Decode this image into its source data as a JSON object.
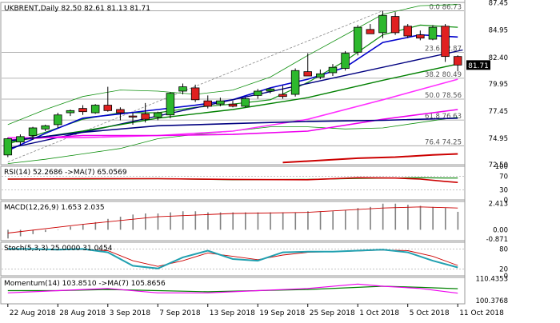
{
  "chart_data": {
    "type": "candlestick",
    "symbol": "UKBRENT",
    "timeframe": "Daily",
    "header": "UKBRENT,Daily  82.50 82.61 81.13 81.71",
    "last_price": "81.71",
    "ylim": [
      72.5,
      87.5
    ],
    "y_ticks": [
      "87.45",
      "84.95",
      "82.40",
      "79.95",
      "77.45",
      "74.95",
      "72.50"
    ],
    "x_labels": [
      "22 Aug 2018",
      "28 Aug 2018",
      "3 Sep 2018",
      "7 Sep 2018",
      "13 Sep 2018",
      "19 Sep 2018",
      "25 Sep 2018",
      "1 Oct 2018",
      "5 Oct 2018",
      "11 Oct 2018"
    ],
    "x_label_index": [
      0,
      4,
      8,
      12,
      16,
      20,
      24,
      28,
      32,
      36
    ],
    "candles": [
      {
        "o": 73.4,
        "h": 75.0,
        "l": 73.2,
        "c": 74.9
      },
      {
        "o": 74.6,
        "h": 75.3,
        "l": 74.3,
        "c": 75.1
      },
      {
        "o": 75.2,
        "h": 76.0,
        "l": 74.8,
        "c": 75.9
      },
      {
        "o": 75.8,
        "h": 76.2,
        "l": 75.6,
        "c": 76.1
      },
      {
        "o": 76.2,
        "h": 77.3,
        "l": 75.9,
        "c": 77.1
      },
      {
        "o": 77.3,
        "h": 77.6,
        "l": 77.0,
        "c": 77.5
      },
      {
        "o": 77.7,
        "h": 78.0,
        "l": 77.1,
        "c": 77.4
      },
      {
        "o": 77.3,
        "h": 78.1,
        "l": 77.2,
        "c": 78.0
      },
      {
        "o": 78.0,
        "h": 79.7,
        "l": 77.4,
        "c": 77.5
      },
      {
        "o": 77.6,
        "h": 77.8,
        "l": 76.6,
        "c": 77.3
      },
      {
        "o": 77.0,
        "h": 77.3,
        "l": 76.2,
        "c": 76.9
      },
      {
        "o": 77.2,
        "h": 78.2,
        "l": 76.4,
        "c": 76.7
      },
      {
        "o": 76.9,
        "h": 77.4,
        "l": 76.6,
        "c": 77.3
      },
      {
        "o": 77.1,
        "h": 79.2,
        "l": 76.8,
        "c": 79.1
      },
      {
        "o": 79.3,
        "h": 80.0,
        "l": 79.0,
        "c": 79.7
      },
      {
        "o": 79.6,
        "h": 79.9,
        "l": 78.3,
        "c": 78.5
      },
      {
        "o": 78.4,
        "h": 78.9,
        "l": 77.7,
        "c": 77.9
      },
      {
        "o": 78.1,
        "h": 78.7,
        "l": 77.9,
        "c": 78.4
      },
      {
        "o": 78.1,
        "h": 78.4,
        "l": 77.8,
        "c": 77.9
      },
      {
        "o": 77.9,
        "h": 78.7,
        "l": 77.8,
        "c": 78.6
      },
      {
        "o": 78.9,
        "h": 79.5,
        "l": 78.6,
        "c": 79.3
      },
      {
        "o": 79.3,
        "h": 79.6,
        "l": 79.1,
        "c": 79.5
      },
      {
        "o": 79.0,
        "h": 79.8,
        "l": 78.6,
        "c": 78.8
      },
      {
        "o": 79.0,
        "h": 81.4,
        "l": 78.8,
        "c": 81.2
      },
      {
        "o": 81.1,
        "h": 82.8,
        "l": 80.8,
        "c": 80.7
      },
      {
        "o": 80.6,
        "h": 81.3,
        "l": 80.4,
        "c": 80.9
      },
      {
        "o": 81.0,
        "h": 81.8,
        "l": 80.7,
        "c": 81.5
      },
      {
        "o": 81.4,
        "h": 83.0,
        "l": 81.2,
        "c": 82.8
      },
      {
        "o": 82.9,
        "h": 85.4,
        "l": 82.6,
        "c": 85.2
      },
      {
        "o": 85.0,
        "h": 85.5,
        "l": 84.7,
        "c": 84.6
      },
      {
        "o": 84.7,
        "h": 86.7,
        "l": 84.2,
        "c": 86.3
      },
      {
        "o": 86.2,
        "h": 86.6,
        "l": 84.5,
        "c": 84.7
      },
      {
        "o": 85.3,
        "h": 85.5,
        "l": 84.2,
        "c": 84.4
      },
      {
        "o": 84.5,
        "h": 84.9,
        "l": 84.0,
        "c": 84.2
      },
      {
        "o": 84.1,
        "h": 85.4,
        "l": 84.0,
        "c": 85.2
      },
      {
        "o": 85.3,
        "h": 85.5,
        "l": 82.0,
        "c": 82.5
      },
      {
        "o": 82.5,
        "h": 82.61,
        "l": 81.13,
        "c": 81.71
      }
    ],
    "fibonacci": [
      {
        "label": "0.0 86.73",
        "value": 86.73
      },
      {
        "label": "23.6 82.87",
        "value": 82.87
      },
      {
        "label": "38.2 80.49",
        "value": 80.49
      },
      {
        "label": "50.0 78.56",
        "value": 78.56
      },
      {
        "label": "61.8 76.63",
        "value": 76.63
      },
      {
        "label": "76.4 74.25",
        "value": 74.25
      }
    ],
    "overlays": [
      {
        "role": "bollinger-upper",
        "color": "#109010",
        "width": 0.8,
        "x": [
          0,
          3,
          6,
          9,
          12,
          15,
          18,
          21,
          24,
          27,
          30,
          33,
          36
        ],
        "y": [
          76.2,
          77.6,
          78.8,
          79.4,
          79.3,
          79.0,
          79.4,
          80.6,
          82.6,
          84.5,
          86.4,
          87.2,
          87.3
        ]
      },
      {
        "role": "bollinger-lower",
        "color": "#109010",
        "width": 0.8,
        "x": [
          0,
          3,
          6,
          9,
          12,
          15,
          18,
          21,
          24,
          27,
          30,
          33,
          36
        ],
        "y": [
          72.6,
          73.0,
          73.5,
          74.0,
          74.9,
          75.3,
          75.6,
          76.0,
          76.0,
          75.8,
          75.9,
          76.4,
          76.9
        ]
      },
      {
        "role": "ma-short",
        "color": "#109010",
        "width": 1.2,
        "x": [
          0,
          3,
          6,
          9,
          12,
          15,
          18,
          21,
          24,
          27,
          30,
          33,
          36
        ],
        "y": [
          74.4,
          75.5,
          76.7,
          77.3,
          77.3,
          77.8,
          78.1,
          78.5,
          80.1,
          82.1,
          84.5,
          85.4,
          85.2
        ]
      },
      {
        "role": "ma-blue",
        "color": "#0000cc",
        "width": 1.6,
        "x": [
          0,
          3,
          6,
          9,
          12,
          15,
          18,
          21,
          24,
          27,
          30,
          33,
          36
        ],
        "y": [
          73.8,
          75.4,
          76.8,
          77.2,
          77.6,
          78.0,
          78.5,
          79.6,
          80.4,
          81.5,
          83.8,
          84.5,
          84.3
        ]
      },
      {
        "role": "trendline",
        "color": "#000080",
        "width": 1.4,
        "x": [
          0,
          36.4
        ],
        "y": [
          74.0,
          83.1
        ]
      },
      {
        "role": "ma-medium",
        "color": "#008000",
        "width": 1.4,
        "x": [
          0,
          6,
          12,
          18,
          24,
          30,
          36
        ],
        "y": [
          74.6,
          75.6,
          76.8,
          77.6,
          78.7,
          80.3,
          81.8
        ]
      },
      {
        "role": "ma-pink",
        "color": "#ff30ff",
        "width": 1.6,
        "x": [
          0,
          6,
          12,
          18,
          24,
          30,
          36
        ],
        "y": [
          75.0,
          75.0,
          75.2,
          75.6,
          76.7,
          78.5,
          80.4
        ]
      },
      {
        "role": "ma-magenta",
        "color": "#ee00ee",
        "width": 1.6,
        "x": [
          0,
          6,
          12,
          18,
          24,
          30,
          36
        ],
        "y": [
          74.8,
          75.2,
          75.2,
          75.3,
          75.6,
          76.7,
          77.6
        ]
      },
      {
        "role": "ma-navy",
        "color": "#000080",
        "width": 1.6,
        "x": [
          0,
          6,
          12,
          18,
          24,
          30,
          36
        ],
        "y": [
          74.7,
          75.5,
          76.1,
          76.3,
          76.5,
          76.6,
          76.8
        ]
      },
      {
        "role": "ma-long",
        "color": "#cc0000",
        "width": 2,
        "x": [
          22,
          25,
          28,
          31,
          34,
          36
        ],
        "y": [
          72.7,
          72.9,
          73.1,
          73.2,
          73.4,
          73.5
        ]
      }
    ],
    "rsi": {
      "title": "RSI(14) 52.2686  ->MA(7) 65.0569",
      "ylim": [
        0,
        100
      ],
      "levels": [
        30,
        70
      ],
      "ticks": [
        "100",
        "70",
        "30",
        "0"
      ],
      "rsi": {
        "color": "#cc0000",
        "x": [
          0,
          6,
          12,
          18,
          24,
          28,
          31,
          33,
          35,
          36
        ],
        "y": [
          62,
          63,
          63,
          61,
          60,
          66,
          65,
          62,
          55,
          52
        ]
      },
      "ma": {
        "color": "#008000",
        "x": [
          0,
          6,
          12,
          18,
          24,
          28,
          31,
          33,
          35,
          36
        ],
        "y": [
          62,
          62,
          63,
          60,
          61,
          64,
          65,
          66,
          65,
          65
        ]
      }
    },
    "macd": {
      "title": "MACD(12,26,9) 1.653 2.035",
      "ticks": [
        "2.413",
        "0.00",
        "-0.871"
      ],
      "ylim": [
        -1.0,
        2.6
      ],
      "histogram": [
        -0.8,
        -0.6,
        -0.4,
        -0.2,
        0.0,
        0.3,
        0.5,
        0.7,
        1.0,
        1.2,
        1.4,
        1.5,
        1.5,
        1.6,
        1.7,
        1.7,
        1.6,
        1.6,
        1.6,
        1.6,
        1.6,
        1.6,
        1.6,
        1.6,
        1.7,
        1.7,
        1.7,
        1.8,
        2.0,
        2.1,
        2.4,
        2.4,
        2.3,
        2.2,
        2.1,
        2.0,
        1.65
      ],
      "signal": {
        "color": "#cc0000",
        "x": [
          0,
          6,
          12,
          18,
          24,
          30,
          33,
          36
        ],
        "y": [
          -0.3,
          0.5,
          1.2,
          1.5,
          1.6,
          2.0,
          2.1,
          2.0
        ]
      }
    },
    "stoch": {
      "title": "Stoch(5,3,3) 25.0000  31.0454",
      "ylim": [
        0,
        100
      ],
      "levels": [
        20,
        80
      ],
      "ticks": [
        "80",
        "20",
        "0"
      ],
      "k": {
        "color": "#20a0b0",
        "x": [
          0,
          2,
          4,
          6,
          8,
          10,
          12,
          14,
          16,
          18,
          20,
          22,
          24,
          26,
          28,
          30,
          32,
          34,
          36
        ],
        "y": [
          80,
          80,
          78,
          80,
          70,
          30,
          22,
          55,
          75,
          50,
          45,
          70,
          72,
          72,
          75,
          78,
          70,
          45,
          25
        ]
      },
      "d": {
        "color": "#cc0000",
        "x": [
          0,
          2,
          4,
          6,
          8,
          10,
          12,
          14,
          16,
          18,
          20,
          22,
          24,
          26,
          28,
          30,
          32,
          34,
          36
        ],
        "y": [
          78,
          80,
          79,
          78,
          75,
          45,
          28,
          45,
          68,
          58,
          48,
          62,
          70,
          72,
          74,
          77,
          75,
          58,
          31
        ]
      }
    },
    "momentum": {
      "title": "Momentum(14) 103.8510  ->MA(7) 105.8656",
      "ticks": [
        "110.4353",
        "100.3768"
      ],
      "ylim": [
        99,
        111
      ],
      "mom": {
        "color": "#ee00ee",
        "x": [
          0,
          4,
          8,
          12,
          16,
          20,
          24,
          28,
          30,
          33,
          36
        ],
        "y": [
          104,
          105,
          106,
          104,
          104,
          105,
          106,
          108,
          107,
          106,
          103.85
        ]
      },
      "ma": {
        "color": "#008000",
        "x": [
          0,
          4,
          8,
          12,
          16,
          20,
          24,
          28,
          30,
          33,
          36
        ],
        "y": [
          105,
          105,
          105.5,
          105,
          104.5,
          105,
          105.5,
          106.5,
          107,
          106.5,
          105.87
        ]
      }
    }
  }
}
